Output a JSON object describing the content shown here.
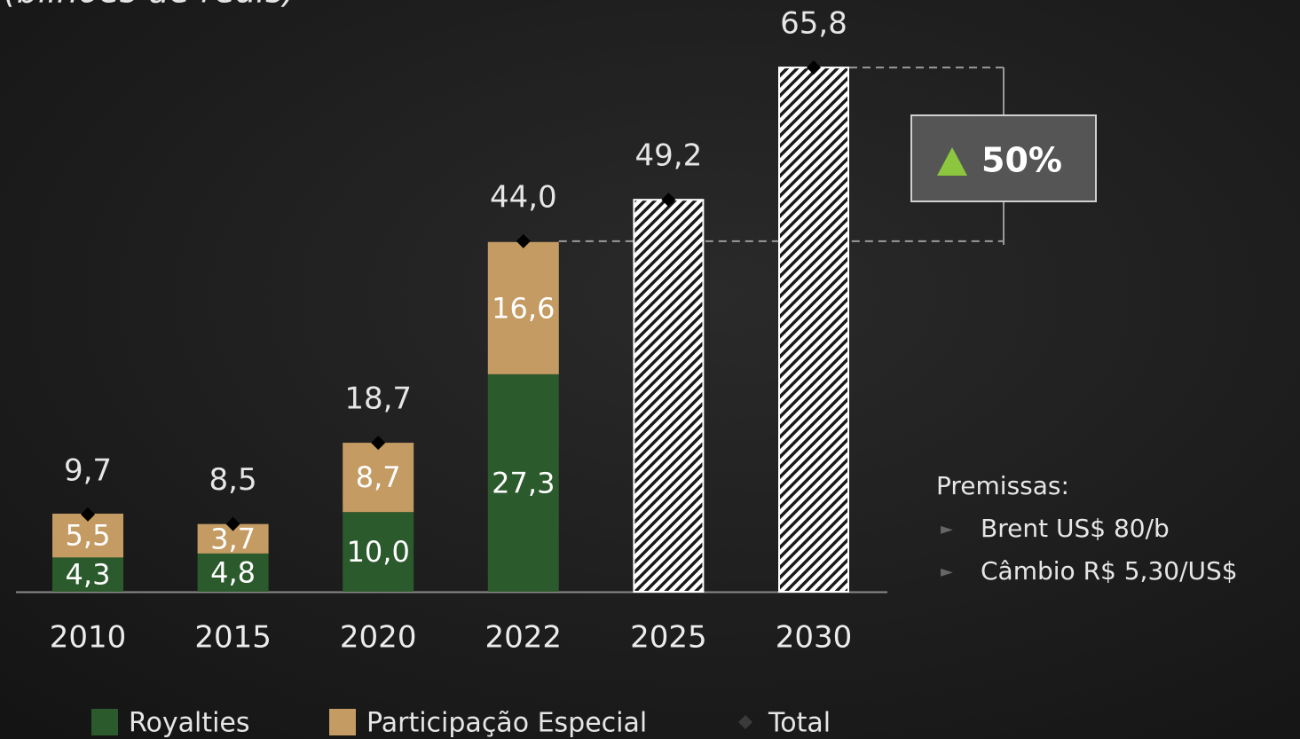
{
  "chart_data": {
    "type": "bar",
    "subtitle": "(bilhões de reais)",
    "categories": [
      "2010",
      "2015",
      "2020",
      "2022",
      "2025",
      "2030"
    ],
    "series": [
      {
        "name": "Royalties",
        "color": "#2b5a2c",
        "values": [
          4.3,
          4.8,
          10.0,
          27.3,
          null,
          null
        ],
        "value_labels": [
          "4,3",
          "4,8",
          "10,0",
          "27,3",
          null,
          null
        ]
      },
      {
        "name": "Participação Especial",
        "color": "#c49b62",
        "values": [
          5.5,
          3.7,
          8.7,
          16.6,
          null,
          null
        ],
        "value_labels": [
          "5,5",
          "3,7",
          "8,7",
          "16,6",
          null,
          null
        ]
      },
      {
        "name": "Total",
        "color": "#000000",
        "values": [
          9.7,
          8.5,
          18.7,
          44.0,
          49.2,
          65.8
        ],
        "value_labels": [
          "9,7",
          "8,5",
          "18,7",
          "44,0",
          "49,2",
          "65,8"
        ]
      }
    ],
    "ylim": [
      0,
      70
    ],
    "annotation": "50%",
    "notes": {
      "title": "Premissas:",
      "items": [
        "Brent US$ 80/b",
        "Câmbio R$ 5,30/US$"
      ]
    }
  }
}
